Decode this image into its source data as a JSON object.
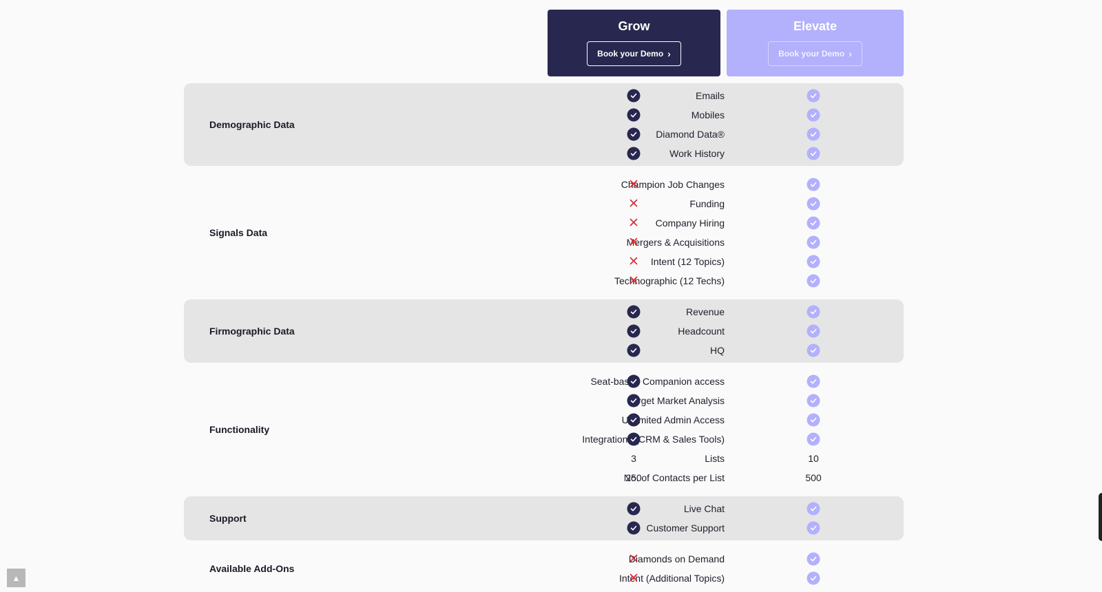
{
  "plans": [
    {
      "name": "Grow",
      "cta": "Book your Demo"
    },
    {
      "name": "Elevate",
      "cta": "Book your Demo"
    }
  ],
  "sections": [
    {
      "title": "Demographic Data",
      "shaded": true,
      "rows": [
        {
          "feature": "Emails",
          "grow": "check",
          "elevate": "check"
        },
        {
          "feature": "Mobiles",
          "grow": "check",
          "elevate": "check"
        },
        {
          "feature": "Diamond Data®",
          "grow": "check",
          "elevate": "check"
        },
        {
          "feature": "Work History",
          "grow": "check",
          "elevate": "check"
        }
      ]
    },
    {
      "title": "Signals Data",
      "shaded": false,
      "rows": [
        {
          "feature": "Champion Job Changes",
          "grow": "cross",
          "elevate": "check"
        },
        {
          "feature": "Funding",
          "grow": "cross",
          "elevate": "check"
        },
        {
          "feature": "Company Hiring",
          "grow": "cross",
          "elevate": "check"
        },
        {
          "feature": "Mergers & Acquisitions",
          "grow": "cross",
          "elevate": "check"
        },
        {
          "feature": "Intent (12 Topics)",
          "grow": "cross",
          "elevate": "check"
        },
        {
          "feature": "Technographic (12 Techs)",
          "grow": "cross",
          "elevate": "check"
        }
      ]
    },
    {
      "title": "Firmographic Data",
      "shaded": true,
      "rows": [
        {
          "feature": "Revenue",
          "grow": "check",
          "elevate": "check"
        },
        {
          "feature": "Headcount",
          "grow": "check",
          "elevate": "check"
        },
        {
          "feature": "HQ",
          "grow": "check",
          "elevate": "check"
        }
      ]
    },
    {
      "title": "Functionality",
      "shaded": false,
      "rows": [
        {
          "feature": "Seat-based Companion access",
          "grow": "check",
          "elevate": "check"
        },
        {
          "feature": "Target Market Analysis",
          "grow": "check",
          "elevate": "check"
        },
        {
          "feature": "Unlimited Admin Access",
          "grow": "check",
          "elevate": "check"
        },
        {
          "feature": "Integrations (CRM & Sales Tools)",
          "grow": "check",
          "elevate": "check"
        },
        {
          "feature": "Lists",
          "grow": "3",
          "elevate": "10"
        },
        {
          "feature": "No. of Contacts per List",
          "grow": "250",
          "elevate": "500"
        }
      ]
    },
    {
      "title": "Support",
      "shaded": true,
      "rows": [
        {
          "feature": "Live Chat",
          "grow": "check",
          "elevate": "check"
        },
        {
          "feature": "Customer Support",
          "grow": "check",
          "elevate": "check"
        }
      ]
    },
    {
      "title": "Available Add-Ons",
      "shaded": false,
      "rows": [
        {
          "feature": "Diamonds on Demand",
          "grow": "cross",
          "elevate": "check"
        },
        {
          "feature": "Intent (Additional Topics)",
          "grow": "cross",
          "elevate": "check"
        }
      ]
    }
  ],
  "icons": {
    "included": "check-circle-icon",
    "excluded": "cross-icon",
    "scroll": "chevron-up-icon",
    "cta": "chevron-right-icon"
  },
  "colors": {
    "grow": "#27274f",
    "elevate": "#b3b0fc",
    "cross": "#d9262e",
    "shaded": "#e5e5e5"
  }
}
